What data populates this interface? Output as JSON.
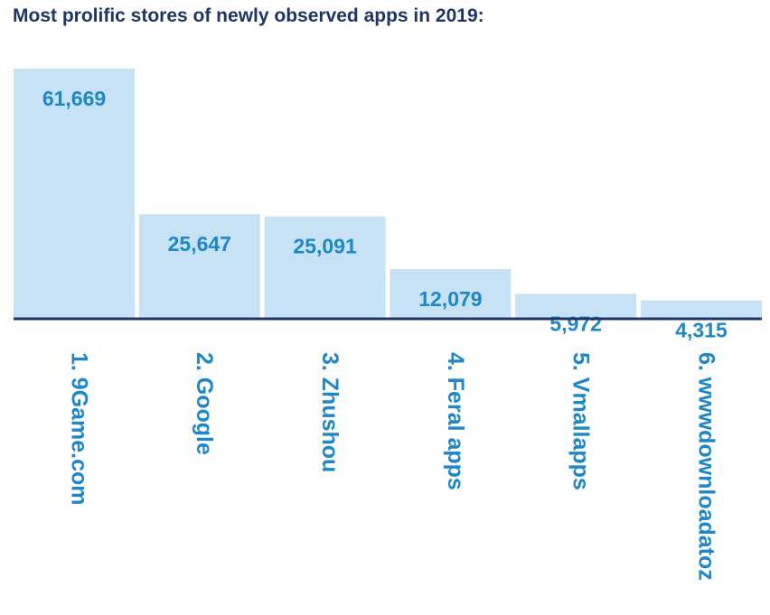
{
  "colors": {
    "bar_fill": "#c7e2f4",
    "value_text": "#1d87c7",
    "category_text": "#1d87c7",
    "baseline": "#1f3566",
    "title_text": "#1f3566"
  },
  "chart_data": {
    "type": "bar",
    "title": "Most prolific stores of newly observed apps in 2019:",
    "categories": [
      "1. 9Game.com",
      "2. Google",
      "3. Zhushou",
      "4. Feral apps",
      "5. Vmallapps",
      "6. wwwdownloadatoz"
    ],
    "values": [
      61669,
      25647,
      25091,
      12079,
      5972,
      4315
    ],
    "value_labels": [
      "61,669",
      "25,647",
      "25,091",
      "12,079",
      "5,972",
      "4,315"
    ],
    "xlabel": "",
    "ylabel": "",
    "grid": false,
    "legend": "none",
    "category_label_orientation": "vertical"
  }
}
